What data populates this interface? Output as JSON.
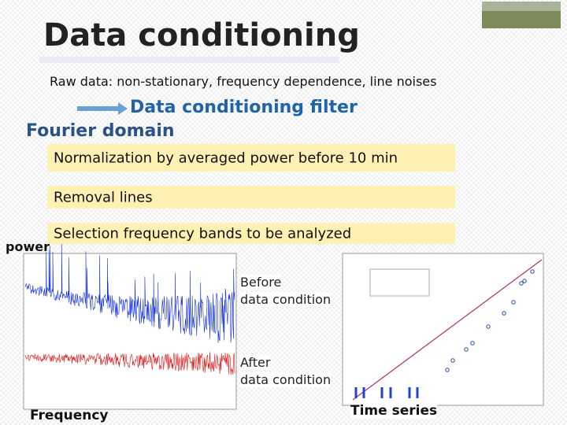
{
  "header": {
    "title": "Data conditioning"
  },
  "intro": "Raw data: non-stationary, frequency dependence, line noises",
  "filter_label": "Data conditioning filter",
  "domain_label": "Fourier domain",
  "steps": [
    "Normalization by averaged power before 10 min",
    "Removal lines",
    "Selection frequency bands to be analyzed"
  ],
  "figure": {
    "y_label": "power",
    "x_label": "Frequency",
    "before": [
      "Before",
      "data condition"
    ],
    "after": [
      "After",
      "data condition"
    ],
    "right_label": "Time series"
  }
}
